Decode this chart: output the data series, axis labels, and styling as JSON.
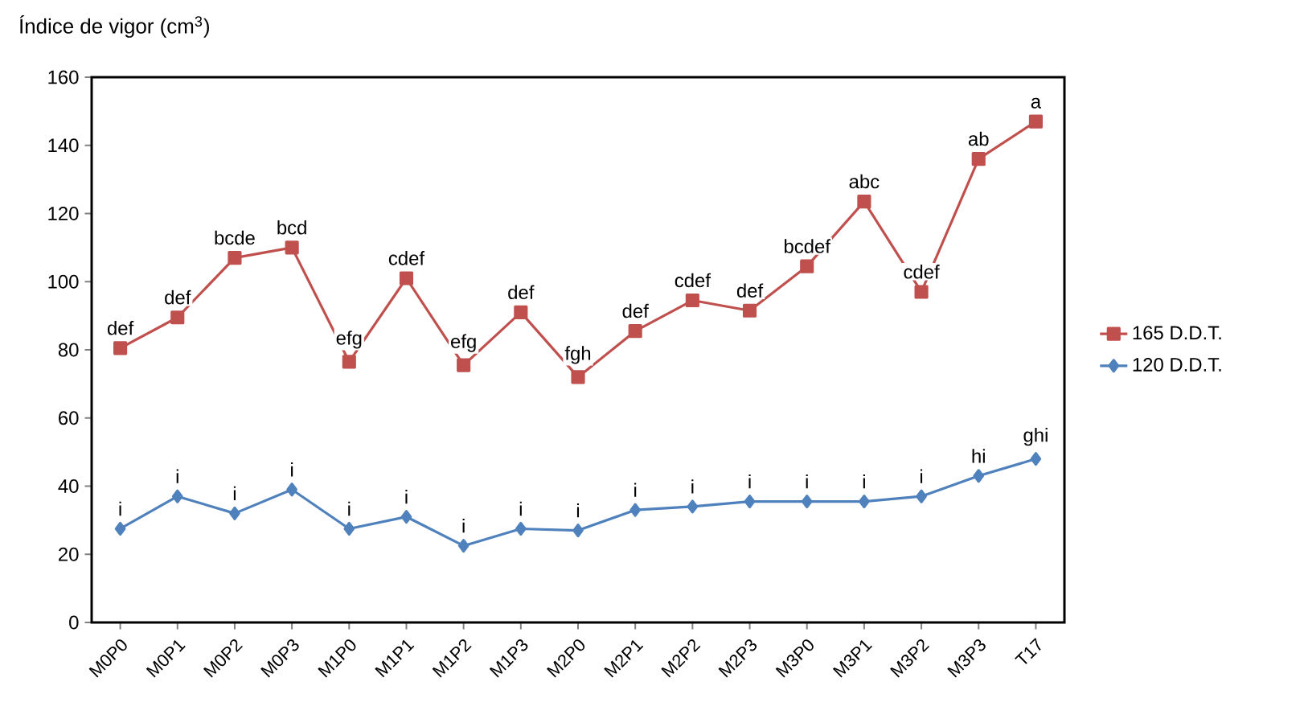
{
  "chart_data": {
    "type": "line",
    "ylabel": "Índice de vigor (cm$^{3}$)",
    "categories": [
      "M0P0",
      "M0P1",
      "M0P2",
      "M0P3",
      "M1P0",
      "M1P1",
      "M1P2",
      "M1P3",
      "M2P0",
      "M2P1",
      "M2P2",
      "M2P3",
      "M3P0",
      "M3P1",
      "M3P2",
      "M3P3",
      "T17"
    ],
    "series": [
      {
        "name": "165 D.D.T.",
        "color": "#c0504d",
        "marker": "square",
        "values": [
          80.5,
          89.5,
          107,
          110,
          76.5,
          101,
          75.5,
          91,
          72,
          85.5,
          94.5,
          91.5,
          104.5,
          123.5,
          97,
          136,
          147
        ]
      },
      {
        "name": "120 D.D.T.",
        "color": "#4f81bd",
        "marker": "diamond",
        "values": [
          27.5,
          37,
          32,
          39,
          27.5,
          31,
          22.5,
          27.5,
          27,
          33,
          34,
          35.5,
          35.5,
          35.5,
          37,
          43,
          48
        ]
      }
    ],
    "ylim": [
      0,
      160
    ],
    "yticks": [
      0,
      20,
      40,
      60,
      80,
      100,
      120,
      140,
      160
    ],
    "grid": false,
    "legend": "right",
    "line_style": "solid",
    "annotations": [
      {
        "text": "def",
        "x": "M0P0",
        "y": 80.5
      },
      {
        "text": "def",
        "x": "M0P1",
        "y": 89.5
      },
      {
        "text": "bcde",
        "x": "M0P2",
        "y": 107
      },
      {
        "text": "bcd",
        "x": "M0P3",
        "y": 110
      },
      {
        "text": "efg",
        "x": "M1P0",
        "y": 76.5
      },
      {
        "text": "cdef",
        "x": "M1P1",
        "y": 101
      },
      {
        "text": "efg",
        "x": "M1P2",
        "y": 75.5
      },
      {
        "text": "def",
        "x": "M1P3",
        "y": 91
      },
      {
        "text": "fgh",
        "x": "M2P0",
        "y": 72
      },
      {
        "text": "def",
        "x": "M2P1",
        "y": 85.5
      },
      {
        "text": "cdef",
        "x": "M2P2",
        "y": 94.5
      },
      {
        "text": "def",
        "x": "M2P3",
        "y": 91.5
      },
      {
        "text": "bcdef",
        "x": "M3P0",
        "y": 104.5
      },
      {
        "text": "abc",
        "x": "M3P1",
        "y": 123.5
      },
      {
        "text": "cdef",
        "x": "M3P2",
        "y": 97
      },
      {
        "text": "ab",
        "x": "M3P3",
        "y": 136
      },
      {
        "text": "a",
        "x": "T17",
        "y": 147
      },
      {
        "text": "i",
        "x": "M0P0",
        "y": 27.5
      },
      {
        "text": "i",
        "x": "M0P1",
        "y": 37
      },
      {
        "text": "i",
        "x": "M0P2",
        "y": 32
      },
      {
        "text": "i",
        "x": "M0P3",
        "y": 39
      },
      {
        "text": "i",
        "x": "M1P0",
        "y": 27.5
      },
      {
        "text": "i",
        "x": "M1P1",
        "y": 31
      },
      {
        "text": "i",
        "x": "M1P2",
        "y": 22.5
      },
      {
        "text": "i",
        "x": "M1P3",
        "y": 27.5
      },
      {
        "text": "i",
        "x": "M2P0",
        "y": 27
      },
      {
        "text": "i",
        "x": "M2P1",
        "y": 33
      },
      {
        "text": "i",
        "x": "M2P2",
        "y": 34
      },
      {
        "text": "i",
        "x": "M2P3",
        "y": 35.5
      },
      {
        "text": "i",
        "x": "M3P0",
        "y": 35.5
      },
      {
        "text": "i",
        "x": "M3P1",
        "y": 35.5
      },
      {
        "text": "i",
        "x": "M3P2",
        "y": 37
      },
      {
        "text": "hi",
        "x": "M3P3",
        "y": 43
      },
      {
        "text": "ghi",
        "x": "T17",
        "y": 48
      }
    ]
  }
}
